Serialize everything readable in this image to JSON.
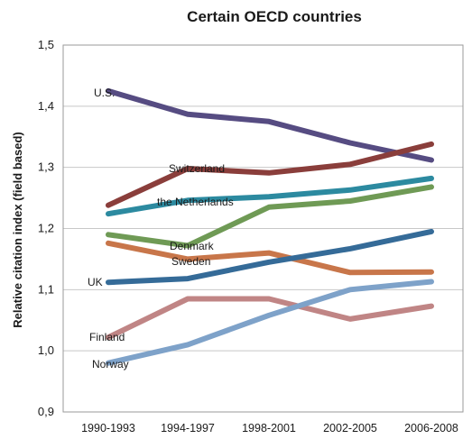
{
  "chart_data": {
    "type": "line",
    "title": "Certain OECD countries",
    "ylabel": "Relative citation index (field based)",
    "xlabel": "",
    "categories": [
      "1990-1993",
      "1994-1997",
      "1998-2001",
      "2002-2005",
      "2006-2008"
    ],
    "ylim": [
      0.9,
      1.5
    ],
    "yticks": [
      "0,9",
      "1,0",
      "1,1",
      "1,2",
      "1,3",
      "1,4",
      "1,5"
    ],
    "grid": true,
    "legend": "inline labels",
    "series": [
      {
        "name": "U.S.",
        "color": "#564c82",
        "values": [
          1.425,
          1.387,
          1.375,
          1.34,
          1.312
        ],
        "label_anchor": [
          0,
          1.425
        ]
      },
      {
        "name": "Switzerland",
        "color": "#8a3e3b",
        "values": [
          1.238,
          1.298,
          1.291,
          1.305,
          1.338
        ],
        "label_anchor": [
          1,
          1.298
        ]
      },
      {
        "name": "the Netherlands",
        "color": "#2c8aa0",
        "values": [
          1.224,
          1.246,
          1.252,
          1.263,
          1.282
        ],
        "label_anchor": [
          1,
          1.246
        ]
      },
      {
        "name": "Denmark",
        "color": "#6f9a55",
        "values": [
          1.19,
          1.172,
          1.235,
          1.245,
          1.268
        ],
        "label_anchor": [
          1,
          1.172
        ]
      },
      {
        "name": "Sweden",
        "color": "#c8764a",
        "values": [
          1.176,
          1.15,
          1.16,
          1.128,
          1.129
        ],
        "label_anchor": [
          1,
          1.15
        ]
      },
      {
        "name": "UK",
        "color": "#356b98",
        "values": [
          1.112,
          1.118,
          1.145,
          1.167,
          1.195
        ],
        "label_anchor": [
          0,
          1.112
        ]
      },
      {
        "name": "Finland",
        "color": "#c08585",
        "values": [
          1.022,
          1.085,
          1.085,
          1.052,
          1.073
        ],
        "label_anchor": [
          0,
          1.022
        ]
      },
      {
        "name": "Norway",
        "color": "#7ea2c9",
        "values": [
          0.98,
          1.01,
          1.058,
          1.1,
          1.113
        ],
        "label_anchor": [
          0,
          0.98
        ]
      }
    ]
  }
}
